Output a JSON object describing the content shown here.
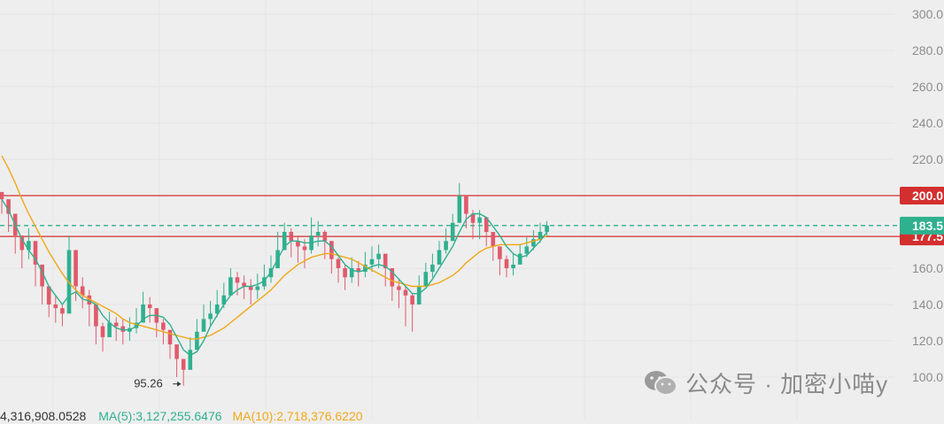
{
  "chart_data": {
    "type": "candlestick",
    "ylim": [
      90,
      305
    ],
    "y_ticks": [
      "300.0",
      "280.0",
      "260.0",
      "240.0",
      "220.0",
      "200.0",
      "180.0",
      "160.0",
      "140.0",
      "120.0",
      "100.0"
    ],
    "y_tick_values": [
      300,
      280,
      260,
      240,
      220,
      200,
      180,
      160,
      140,
      120,
      100
    ],
    "horizontal_lines": [
      {
        "value": 200,
        "label": "200.0",
        "color": "#d32f2f",
        "style": "solid"
      },
      {
        "value": 177.5,
        "label": "177.5",
        "color": "#d32f2f",
        "style": "solid"
      },
      {
        "value": 183.5,
        "label": "183.5",
        "color": "#2fb08f",
        "style": "dashed"
      }
    ],
    "annotation": {
      "text": "95.26",
      "value": 95.26
    },
    "colors": {
      "up": "#2fb08f",
      "down": "#e05a6b",
      "ma_short": "#2fb08f",
      "ma_long": "#f0a818"
    },
    "closes": [
      198,
      190,
      178,
      170,
      175,
      162,
      150,
      140,
      138,
      135,
      170,
      150,
      145,
      140,
      128,
      122,
      130,
      128,
      125,
      127,
      130,
      140,
      138,
      130,
      126,
      118,
      110,
      104,
      115,
      125,
      132,
      135,
      140,
      145,
      155,
      152,
      150,
      148,
      150,
      155,
      160,
      170,
      180,
      175,
      172,
      170,
      178,
      180,
      175,
      165,
      160,
      155,
      160,
      158,
      162,
      165,
      168,
      160,
      150,
      148,
      145,
      140,
      150,
      158,
      162,
      170,
      175,
      185,
      200,
      190,
      185,
      188,
      180,
      172,
      165,
      160,
      162,
      168,
      172,
      176,
      180,
      183.5
    ],
    "highs": [
      201,
      195,
      190,
      178,
      182,
      172,
      160,
      150,
      145,
      140,
      178,
      160,
      155,
      148,
      135,
      130,
      136,
      133,
      132,
      133,
      138,
      147,
      144,
      136,
      132,
      125,
      116,
      110,
      122,
      132,
      140,
      142,
      148,
      152,
      160,
      158,
      156,
      154,
      157,
      162,
      167,
      180,
      185,
      182,
      178,
      176,
      188,
      186,
      181,
      172,
      166,
      162,
      166,
      164,
      169,
      172,
      173,
      167,
      157,
      154,
      150,
      146,
      156,
      163,
      168,
      175,
      182,
      190,
      207,
      198,
      192,
      192,
      188,
      178,
      171,
      167,
      168,
      173,
      177,
      181,
      185,
      186
    ],
    "lows": [
      190,
      180,
      168,
      160,
      165,
      150,
      140,
      133,
      130,
      128,
      150,
      142,
      138,
      128,
      118,
      114,
      122,
      120,
      118,
      120,
      124,
      132,
      130,
      122,
      118,
      110,
      100,
      95.26,
      105,
      118,
      125,
      128,
      133,
      138,
      146,
      145,
      143,
      140,
      143,
      148,
      152,
      160,
      170,
      166,
      163,
      160,
      168,
      172,
      165,
      157,
      152,
      148,
      152,
      150,
      155,
      158,
      160,
      150,
      142,
      138,
      128,
      125,
      140,
      150,
      155,
      162,
      168,
      178,
      186,
      182,
      176,
      176,
      172,
      164,
      156,
      155,
      156,
      162,
      166,
      170,
      174,
      178
    ],
    "ma_short": [
      198,
      192,
      184,
      176,
      170,
      165,
      158,
      150,
      145,
      140,
      145,
      147,
      143,
      142,
      140,
      134,
      130,
      127,
      126,
      126,
      128,
      132,
      134,
      134,
      133,
      129,
      122,
      115,
      112,
      114,
      120,
      128,
      134,
      140,
      145,
      148,
      150,
      150,
      151,
      153,
      158,
      165,
      172,
      175,
      175,
      174,
      174,
      175,
      175,
      172,
      167,
      162,
      159,
      158,
      159,
      161,
      162,
      161,
      158,
      154,
      150,
      146,
      146,
      149,
      154,
      160,
      166,
      172,
      180,
      187,
      190,
      190,
      188,
      183,
      178,
      172,
      168,
      166,
      167,
      171,
      175,
      180
    ],
    "ma_long": [
      222,
      215,
      207,
      198,
      190,
      183,
      176,
      169,
      163,
      157,
      152,
      148,
      145,
      143,
      141,
      139,
      137,
      135,
      132,
      130,
      129,
      128,
      127,
      126,
      125,
      124,
      123,
      122,
      121,
      121,
      122,
      123,
      125,
      127,
      130,
      133,
      136,
      139,
      142,
      145,
      148,
      152,
      156,
      159,
      162,
      164,
      166,
      167,
      168,
      168,
      167,
      166,
      165,
      163,
      161,
      159,
      157,
      155,
      153,
      152,
      151,
      150,
      150,
      150,
      151,
      152,
      154,
      156,
      159,
      163,
      166,
      169,
      171,
      172,
      173,
      173,
      173,
      173,
      174,
      175,
      176,
      178
    ]
  },
  "volume_readout": {
    "volume": "4,316,908.0528",
    "ma5": "MA(5):3,127,255.6476",
    "ma10": "MA(10):2,718,376.6220"
  },
  "watermark": {
    "text": "公众号 · 加密小喵y",
    "icon": "wechat-icon"
  }
}
